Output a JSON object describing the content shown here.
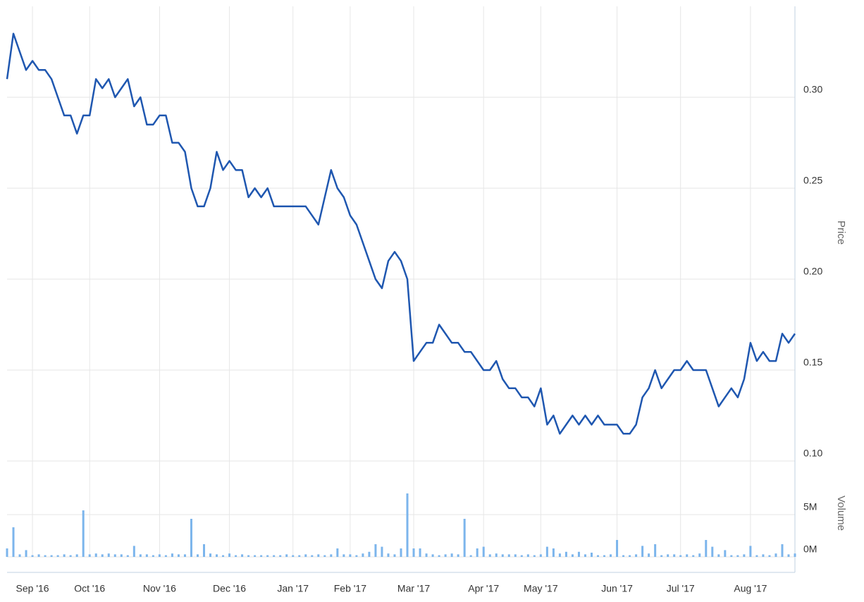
{
  "chart_data": [
    {
      "type": "line",
      "y_label": "Price",
      "color": "#1f57b0",
      "grid": true,
      "categories": [
        null,
        null,
        null,
        null,
        "Sep '16",
        null,
        null,
        null,
        null,
        null,
        null,
        null,
        null,
        "Oct '16",
        null,
        null,
        null,
        null,
        null,
        null,
        null,
        null,
        null,
        null,
        "Nov '16",
        null,
        null,
        null,
        null,
        null,
        null,
        null,
        null,
        null,
        null,
        "Dec '16",
        null,
        null,
        null,
        null,
        null,
        null,
        null,
        null,
        null,
        "Jan '17",
        null,
        null,
        null,
        null,
        null,
        null,
        null,
        null,
        "Feb '17",
        null,
        null,
        null,
        null,
        null,
        null,
        null,
        null,
        null,
        "Mar '17",
        null,
        null,
        null,
        null,
        null,
        null,
        null,
        null,
        null,
        null,
        "Apr '17",
        null,
        null,
        null,
        null,
        null,
        null,
        null,
        null,
        "May '17",
        null,
        null,
        null,
        null,
        null,
        null,
        null,
        null,
        null,
        null,
        null,
        "Jun '17",
        null,
        null,
        null,
        null,
        null,
        null,
        null,
        null,
        null,
        "Jul '17",
        null,
        null,
        null,
        null,
        null,
        null,
        null,
        null,
        null,
        null,
        "Aug '17",
        null,
        null,
        null,
        null,
        null,
        null,
        null
      ],
      "values": [
        0.31,
        0.335,
        0.325,
        0.315,
        0.32,
        0.315,
        0.315,
        0.31,
        0.3,
        0.29,
        0.29,
        0.28,
        0.29,
        0.29,
        0.31,
        0.305,
        0.31,
        0.3,
        0.305,
        0.31,
        0.295,
        0.3,
        0.285,
        0.285,
        0.29,
        0.29,
        0.275,
        0.275,
        0.27,
        0.25,
        0.24,
        0.24,
        0.25,
        0.27,
        0.26,
        0.265,
        0.26,
        0.26,
        0.245,
        0.25,
        0.245,
        0.25,
        0.24,
        0.24,
        0.24,
        0.24,
        0.24,
        0.24,
        0.235,
        0.23,
        0.245,
        0.26,
        0.25,
        0.245,
        0.235,
        0.23,
        0.22,
        0.21,
        0.2,
        0.195,
        0.21,
        0.215,
        0.21,
        0.2,
        0.155,
        0.16,
        0.165,
        0.165,
        0.175,
        0.17,
        0.165,
        0.165,
        0.16,
        0.16,
        0.155,
        0.15,
        0.15,
        0.155,
        0.145,
        0.14,
        0.14,
        0.135,
        0.135,
        0.13,
        0.14,
        0.12,
        0.125,
        0.115,
        0.12,
        0.125,
        0.12,
        0.125,
        0.12,
        0.125,
        0.12,
        0.12,
        0.12,
        0.115,
        0.115,
        0.12,
        0.135,
        0.14,
        0.15,
        0.14,
        0.145,
        0.15,
        0.15,
        0.155,
        0.15,
        0.15,
        0.15,
        0.14,
        0.13,
        0.135,
        0.14,
        0.135,
        0.145,
        0.165,
        0.155,
        0.16,
        0.155,
        0.155,
        0.17,
        0.165,
        0.17
      ],
      "ylim": [
        0.1,
        0.35
      ],
      "yticks": [
        {
          "value": 0.1,
          "label": "0.10"
        },
        0.15,
        {
          "value": 0.2,
          "label": "0.20"
        },
        0.25,
        {
          "value": 0.3,
          "label": "0.30"
        }
      ]
    },
    {
      "type": "bar",
      "y_label": "Volume",
      "color": "#7cb5ec",
      "grid": true,
      "values": [
        1000000,
        3500000,
        300000,
        800000,
        200000,
        300000,
        200000,
        200000,
        200000,
        300000,
        200000,
        300000,
        5500000,
        300000,
        400000,
        300000,
        400000,
        300000,
        300000,
        200000,
        1300000,
        300000,
        300000,
        200000,
        300000,
        200000,
        400000,
        300000,
        300000,
        4500000,
        300000,
        1500000,
        400000,
        300000,
        200000,
        400000,
        200000,
        300000,
        200000,
        200000,
        200000,
        200000,
        200000,
        200000,
        300000,
        200000,
        200000,
        300000,
        200000,
        300000,
        200000,
        300000,
        1000000,
        300000,
        300000,
        200000,
        400000,
        600000,
        1500000,
        1200000,
        400000,
        300000,
        1000000,
        7500000,
        1000000,
        1000000,
        400000,
        300000,
        200000,
        300000,
        400000,
        300000,
        4500000,
        200000,
        1000000,
        1200000,
        300000,
        400000,
        300000,
        300000,
        300000,
        200000,
        300000,
        200000,
        300000,
        1200000,
        1000000,
        400000,
        600000,
        300000,
        600000,
        300000,
        500000,
        200000,
        200000,
        300000,
        2000000,
        200000,
        200000,
        300000,
        1300000,
        400000,
        1500000,
        200000,
        300000,
        300000,
        200000,
        300000,
        200000,
        400000,
        2000000,
        1200000,
        300000,
        800000,
        200000,
        200000,
        300000,
        1300000,
        200000,
        300000,
        200000,
        400000,
        1500000,
        300000,
        400000
      ],
      "ylim": [
        0,
        10000000
      ],
      "yticks": [
        {
          "value": 0,
          "label": "0M"
        },
        {
          "value": 5000000,
          "label": "5M"
        }
      ]
    }
  ]
}
